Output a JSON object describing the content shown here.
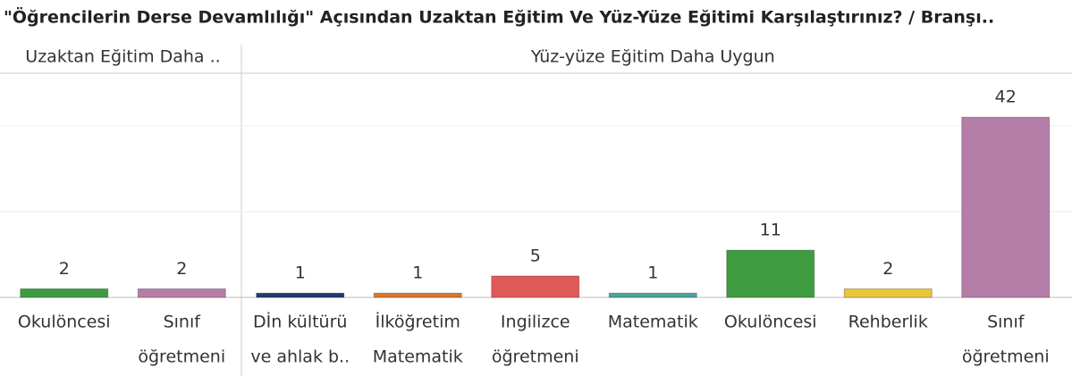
{
  "chart_data": {
    "type": "bar",
    "title": "\"Öğrencilerin Derse Devamlılığı\" Açısından Uzaktan Eğitim Ve Yüz-Yüze Eğitimi  Karşılaştırınız? / Branşı..",
    "ylim": [
      0,
      51
    ],
    "yticks": [
      0,
      20,
      40
    ],
    "grid": true,
    "panels": [
      {
        "title": "Uzaktan Eğitim Daha ..",
        "categories": [
          [
            "Okulöncesi"
          ],
          [
            "Sınıf",
            "öğretmeni"
          ]
        ],
        "values": [
          2,
          2
        ],
        "colors": [
          "#3f9b3f",
          "#b47ea8"
        ]
      },
      {
        "title": "Yüz-yüze Eğitim Daha Uygun",
        "categories": [
          [
            "Dİn kültürü",
            "ve ahlak b.."
          ],
          [
            "İlköğretim",
            "Matematik"
          ],
          [
            "Ingilizce",
            "öğretmeni"
          ],
          [
            "Matematik"
          ],
          [
            "Okulöncesi"
          ],
          [
            "Rehberlik"
          ],
          [
            "Sınıf",
            "öğretmeni"
          ]
        ],
        "values": [
          1,
          1,
          5,
          1,
          11,
          2,
          42
        ],
        "colors": [
          "#1f3a6e",
          "#d9772b",
          "#e05a5a",
          "#4aa39a",
          "#3f9b3f",
          "#e8c53a",
          "#b47ea8"
        ]
      }
    ]
  }
}
